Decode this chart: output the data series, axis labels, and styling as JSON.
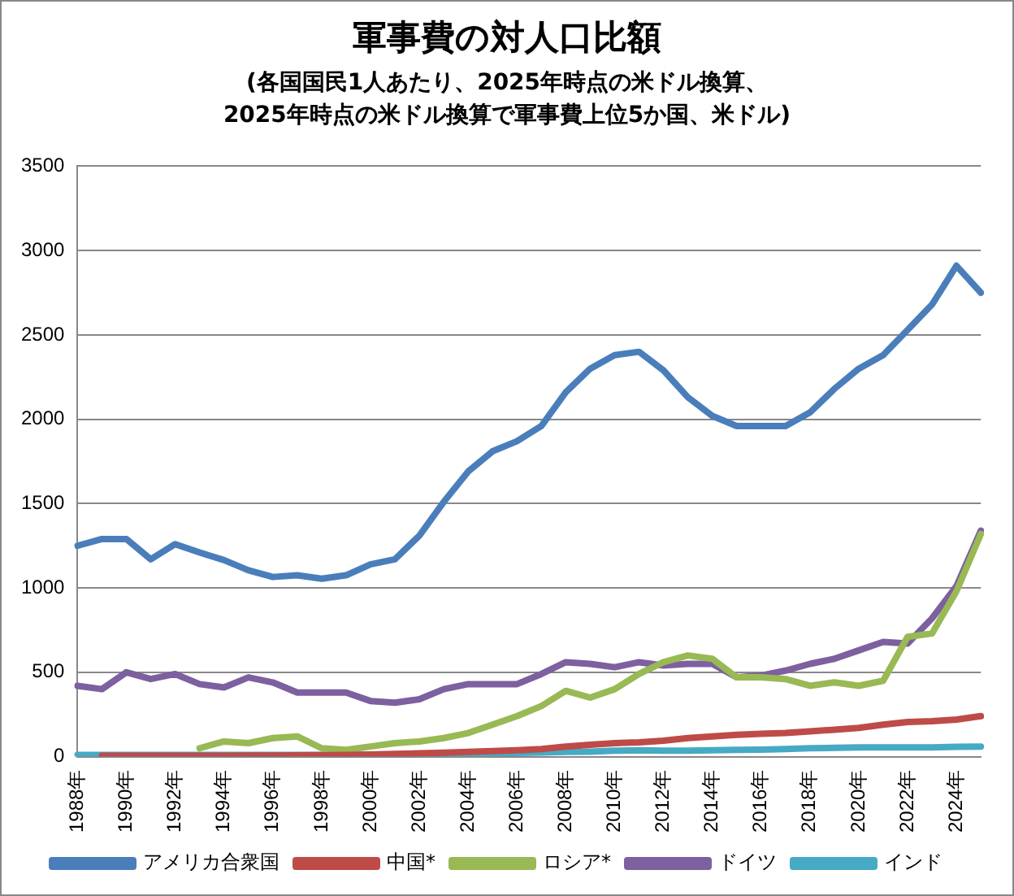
{
  "chart_data": {
    "type": "line",
    "title": "軍事費の対人口比額",
    "subtitle": "(各国国民1人あたり、2025年時点の米ドル換算、\n2025年時点の米ドル換算で軍事費上位5か国、米ドル)",
    "categories": [
      "1988年",
      null,
      "1990年",
      null,
      "1992年",
      null,
      "1994年",
      null,
      "1996年",
      null,
      "1998年",
      null,
      "2000年",
      null,
      "2002年",
      null,
      "2004年",
      null,
      "2006年",
      null,
      "2008年",
      null,
      "2010年",
      null,
      "2012年",
      null,
      "2014年",
      null,
      "2016年",
      null,
      "2018年",
      null,
      "2020年",
      null,
      "2022年",
      null,
      "2024年",
      null
    ],
    "series": [
      {
        "name": "アメリカ合衆国",
        "color": "#4a7ebb",
        "values": [
          1250,
          1290,
          1290,
          1170,
          1260,
          1210,
          1165,
          1105,
          1065,
          1075,
          1055,
          1075,
          1140,
          1170,
          1310,
          1510,
          1690,
          1810,
          1870,
          1960,
          2160,
          2300,
          2380,
          2400,
          2290,
          2130,
          2020,
          1960,
          1960,
          1960,
          2040,
          2180,
          2300,
          2380,
          2530,
          2680,
          2910,
          2750
        ]
      },
      {
        "name": "中国*",
        "color": "#be4b48",
        "values": [
          null,
          5,
          5,
          5,
          5,
          5,
          5,
          6,
          7,
          8,
          9,
          10,
          13,
          16,
          20,
          24,
          28,
          33,
          38,
          45,
          60,
          70,
          80,
          85,
          95,
          110,
          120,
          130,
          135,
          140,
          150,
          160,
          170,
          190,
          205,
          210,
          220,
          240
        ]
      },
      {
        "name": "ロシア*",
        "color": "#98b954",
        "values": [
          null,
          null,
          null,
          null,
          null,
          50,
          90,
          80,
          110,
          120,
          50,
          40,
          60,
          80,
          90,
          110,
          140,
          190,
          240,
          300,
          390,
          350,
          400,
          490,
          560,
          600,
          580,
          470,
          470,
          460,
          420,
          440,
          420,
          450,
          710,
          730,
          980,
          1320
        ]
      },
      {
        "name": "ドイツ",
        "color": "#7d60a0",
        "values": [
          420,
          400,
          500,
          460,
          490,
          430,
          410,
          470,
          440,
          380,
          380,
          380,
          330,
          320,
          340,
          400,
          430,
          430,
          430,
          490,
          560,
          550,
          530,
          560,
          540,
          550,
          550,
          470,
          480,
          510,
          550,
          580,
          630,
          680,
          670,
          820,
          1010,
          1340
        ]
      },
      {
        "name": "インド",
        "color": "#46aac5",
        "values": [
          10,
          10,
          10,
          10,
          10,
          10,
          10,
          10,
          10,
          10,
          10,
          10,
          12,
          12,
          13,
          15,
          17,
          20,
          22,
          25,
          28,
          30,
          35,
          38,
          35,
          35,
          38,
          40,
          42,
          45,
          50,
          52,
          55,
          55,
          55,
          55,
          58,
          60
        ]
      }
    ],
    "ylim": [
      0,
      3500
    ],
    "yticks": [
      0,
      500,
      1000,
      1500,
      2000,
      2500,
      3000,
      3500
    ],
    "grid": "y",
    "legend": "bottom",
    "marker": "none",
    "line_style": "solid"
  }
}
